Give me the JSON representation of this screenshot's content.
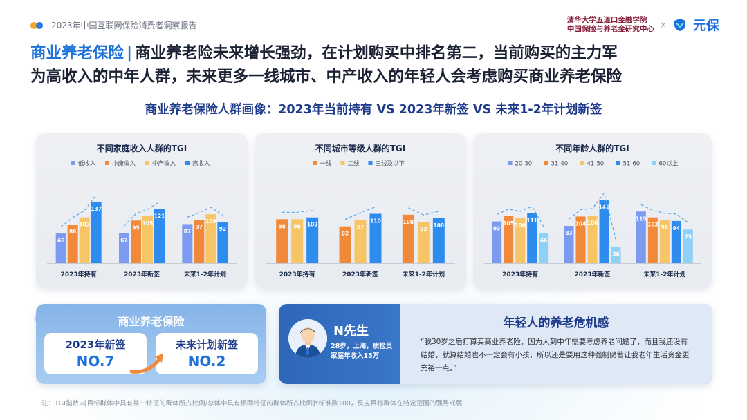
{
  "header": {
    "report_name": "2023年中国互联网保险消费者洞察报告",
    "institution_line1": "清华大学五道口金融学院",
    "institution_line2": "中国保险与养老金研究中心",
    "times_sign": "×",
    "brand_name": "元保"
  },
  "headline": {
    "topic": "商业养老保险",
    "separator": "|",
    "line1_rest": "商业养老险未来增长强劲，在计划购买中排名第二，当前购买的主力军",
    "line2": "为高收入的中年人群，未来更多一线城市、中产收入的年轻人会考虑购买商业养老保险"
  },
  "subtitle": "商业养老保险人群画像：2023年当前持有 VS 2023年新签 VS 未来1-2年计划新签",
  "colors": {
    "blue_light": "#7b9af0",
    "orange": "#f08a3a",
    "yellow": "#f7c566",
    "blue": "#2f8cef",
    "sky": "#8fd0f5",
    "dash": "#58a8e8",
    "panel_title": "#1b2a4a"
  },
  "chart_data": [
    {
      "type": "bar",
      "title": "不同家庭收入人群的TGI",
      "categories": [
        "2023年持有",
        "2023年新签",
        "未来1-2年计划"
      ],
      "series": [
        {
          "name": "低收入",
          "values": [
            66,
            67,
            87
          ]
        },
        {
          "name": "小康收入",
          "values": [
            86,
            95,
            97
          ]
        },
        {
          "name": "中产收入",
          "values": [
            102,
            105,
            109
          ]
        },
        {
          "name": "高收入",
          "values": [
            137,
            121,
            92
          ]
        }
      ],
      "ylim": [
        0,
        160
      ],
      "trend_line": "dashed",
      "grid": false
    },
    {
      "type": "bar",
      "title": "不同城市等级人群的TGI",
      "categories": [
        "2023年持有",
        "2023年新签",
        "未来1-2年计划"
      ],
      "series": [
        {
          "name": "一线",
          "values": [
            98,
            82,
            108
          ]
        },
        {
          "name": "二线",
          "values": [
            98,
            97,
            92
          ]
        },
        {
          "name": "三线及以下",
          "values": [
            102,
            110,
            100
          ]
        }
      ],
      "ylim": [
        0,
        160
      ],
      "trend_line": "dashed",
      "grid": false
    },
    {
      "type": "bar",
      "title": "不同年龄人群的TGI",
      "categories": [
        "2023年持有",
        "2023年新签",
        "未来1-2年计划"
      ],
      "series": [
        {
          "name": "20-30",
          "values": [
            93,
            83,
            115
          ]
        },
        {
          "name": "31-40",
          "values": [
            105,
            104,
            102
          ]
        },
        {
          "name": "41-50",
          "values": [
            100,
            106,
            96
          ]
        },
        {
          "name": "51-60",
          "values": [
            111,
            141,
            94
          ]
        },
        {
          "name": "60以上",
          "values": [
            66,
            36,
            75
          ]
        }
      ],
      "ylim": [
        0,
        160
      ],
      "trend_line": "dashed",
      "grid": false
    }
  ],
  "promo": {
    "title": "商业养老保险",
    "card1_label": "2023年新签",
    "card1_value": "NO.7",
    "card2_label": "未来计划新签",
    "card2_value": "NO.2"
  },
  "persona": {
    "name": "N先生",
    "info_line1": "28岁，上海，质检员",
    "info_line2": "家庭年收入15万",
    "quote_title": "年轻人的养老危机感",
    "quote": "“我30岁之后打算买商业养老险，因为人到中年需要考虑养老问题了，而且我还没有结婚，就算结婚也不一定会有小孩，所以还是要用这种强制储蓄让我老年生活资金更充裕一点。”"
  },
  "footnote": "注：TGI指数=[目标群体中具有某一特征的群体所占比例/总体中具有相同特征的群体所占比例]*标准数100，反应目标群体在特定范围的强势或弱"
}
